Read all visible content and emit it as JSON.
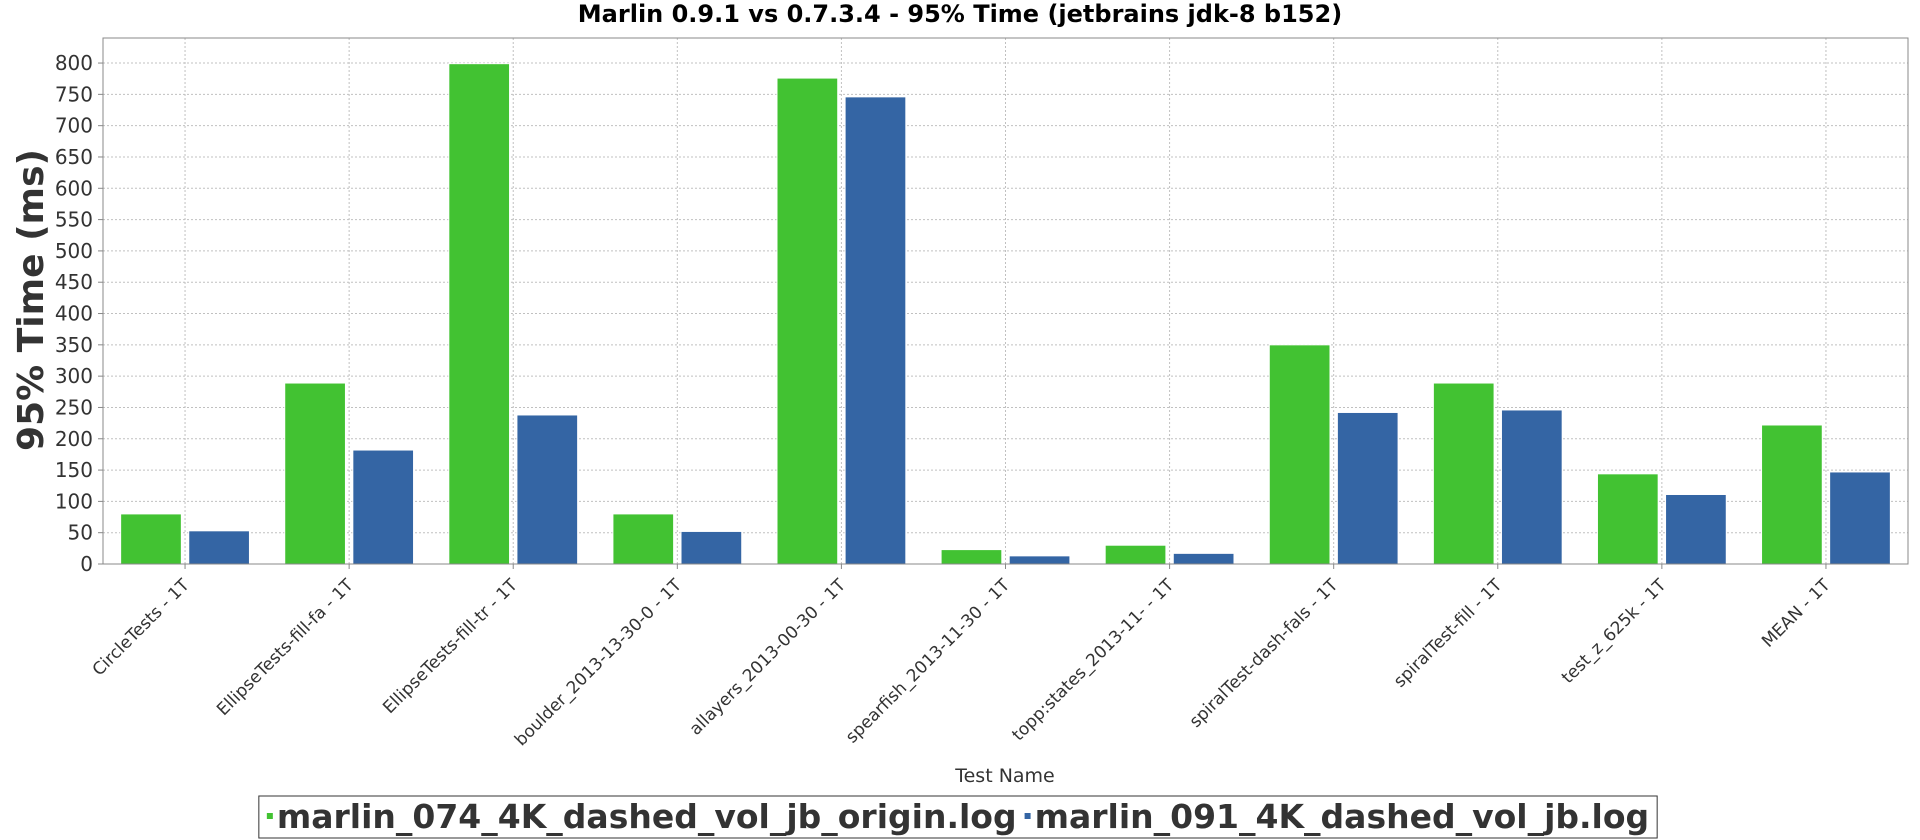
{
  "chart_data": {
    "type": "bar",
    "title": "Marlin 0.9.1 vs 0.7.3.4 - 95% Time (jetbrains jdk-8 b152)",
    "xlabel": "Test Name",
    "ylabel": "95% Time (ms)",
    "ylim": [
      0,
      840
    ],
    "yticks": [
      0,
      50,
      100,
      150,
      200,
      250,
      300,
      350,
      400,
      450,
      500,
      550,
      600,
      650,
      700,
      750,
      800
    ],
    "grid": true,
    "legend_position": "bottom",
    "categories": [
      "CircleTests - 1T",
      "EllipseTests-fill-fa - 1T",
      "EllipseTests-fill-tr - 1T",
      "boulder_2013-13-30-0 - 1T",
      "allayers_2013-00-30 - 1T",
      "spearfish_2013-11-30 - 1T",
      "topp:states_2013-11- - 1T",
      "spiralTest-dash-fals - 1T",
      "spiralTest-fill - 1T",
      "test_z_625k - 1T",
      "MEAN - 1T"
    ],
    "series": [
      {
        "name": "marlin_074_4K_dashed_vol_jb_origin.log",
        "color": "#42c232",
        "values": [
          80,
          289,
          799,
          80,
          776,
          23,
          30,
          350,
          289,
          144,
          222
        ]
      },
      {
        "name": "marlin_091_4K_dashed_vol_jb.log",
        "color": "#3465a4",
        "values": [
          53,
          182,
          238,
          52,
          746,
          13,
          17,
          242,
          246,
          111,
          147
        ]
      }
    ]
  }
}
